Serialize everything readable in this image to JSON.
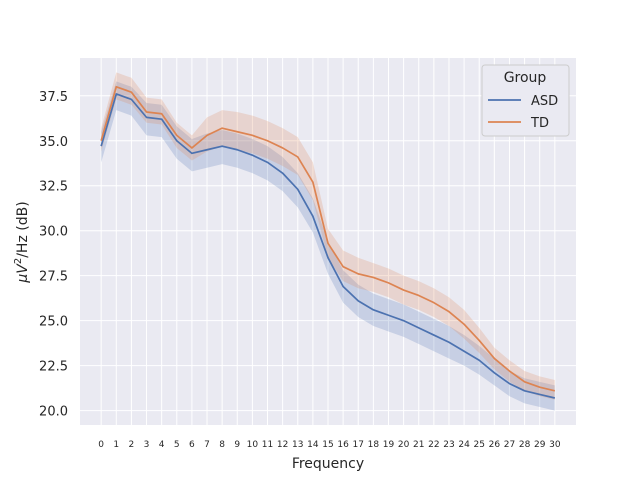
{
  "chart_data": {
    "type": "line",
    "xlabel": "Frequency",
    "ylabel_prefix": "μV",
    "ylabel_sup": "2",
    "ylabel_suffix": "/Hz (dB)",
    "x": [
      0,
      1,
      2,
      3,
      4,
      5,
      6,
      7,
      8,
      9,
      10,
      11,
      12,
      13,
      14,
      15,
      16,
      17,
      18,
      19,
      20,
      21,
      22,
      23,
      24,
      25,
      26,
      27,
      28,
      29,
      30
    ],
    "xlim": [
      -1.4,
      31.4
    ],
    "ylim": [
      19.2,
      39.6
    ],
    "yticks": [
      20.0,
      22.5,
      25.0,
      27.5,
      30.0,
      32.5,
      35.0,
      37.5
    ],
    "ytick_labels": [
      "20.0",
      "22.5",
      "25.0",
      "27.5",
      "30.0",
      "32.5",
      "35.0",
      "37.5"
    ],
    "grid": true,
    "legend": {
      "title": "Group",
      "position": "top-right",
      "entries": [
        "ASD",
        "TD"
      ]
    },
    "series": [
      {
        "name": "ASD",
        "color": "#4c72b0",
        "values": [
          34.7,
          37.6,
          37.3,
          36.3,
          36.2,
          35.0,
          34.3,
          34.5,
          34.7,
          34.5,
          34.2,
          33.8,
          33.2,
          32.3,
          30.8,
          28.5,
          26.9,
          26.1,
          25.6,
          25.3,
          25.0,
          24.6,
          24.2,
          23.8,
          23.3,
          22.8,
          22.1,
          21.5,
          21.1,
          20.9,
          20.7
        ],
        "lower": [
          33.8,
          36.7,
          36.4,
          35.3,
          35.2,
          34.0,
          33.3,
          33.5,
          33.7,
          33.5,
          33.2,
          32.8,
          32.2,
          31.3,
          29.9,
          27.6,
          26.0,
          25.2,
          24.7,
          24.4,
          24.1,
          23.7,
          23.3,
          22.9,
          22.5,
          22.0,
          21.4,
          20.8,
          20.4,
          20.2,
          20.0
        ],
        "upper": [
          35.5,
          38.3,
          38.0,
          37.1,
          37.0,
          35.8,
          35.1,
          35.4,
          35.6,
          35.4,
          35.1,
          34.7,
          34.1,
          33.2,
          31.8,
          29.4,
          27.8,
          27.0,
          26.5,
          26.2,
          25.9,
          25.5,
          25.1,
          24.7,
          24.2,
          23.6,
          22.9,
          22.2,
          21.8,
          21.6,
          21.4
        ]
      },
      {
        "name": "TD",
        "color": "#dd8452",
        "values": [
          35.0,
          38.0,
          37.7,
          36.6,
          36.5,
          35.3,
          34.6,
          35.3,
          35.7,
          35.5,
          35.3,
          35.0,
          34.6,
          34.1,
          32.7,
          29.3,
          28.0,
          27.6,
          27.4,
          27.1,
          26.7,
          26.4,
          26.0,
          25.5,
          24.8,
          23.9,
          22.9,
          22.2,
          21.6,
          21.3,
          21.1
        ],
        "lower": [
          34.4,
          37.3,
          37.0,
          36.0,
          35.9,
          34.6,
          33.9,
          34.4,
          34.7,
          34.5,
          34.3,
          34.0,
          33.6,
          33.1,
          31.7,
          28.5,
          27.2,
          26.8,
          26.6,
          26.3,
          25.9,
          25.6,
          25.2,
          24.7,
          24.0,
          23.2,
          22.3,
          21.6,
          21.1,
          20.8,
          20.6
        ],
        "upper": [
          35.7,
          38.8,
          38.5,
          37.4,
          37.3,
          36.0,
          35.3,
          36.3,
          36.7,
          36.6,
          36.4,
          36.1,
          35.7,
          35.2,
          33.8,
          30.1,
          28.9,
          28.5,
          28.2,
          27.9,
          27.5,
          27.2,
          26.8,
          26.3,
          25.6,
          24.6,
          23.5,
          22.8,
          22.2,
          21.9,
          21.7
        ]
      }
    ]
  }
}
